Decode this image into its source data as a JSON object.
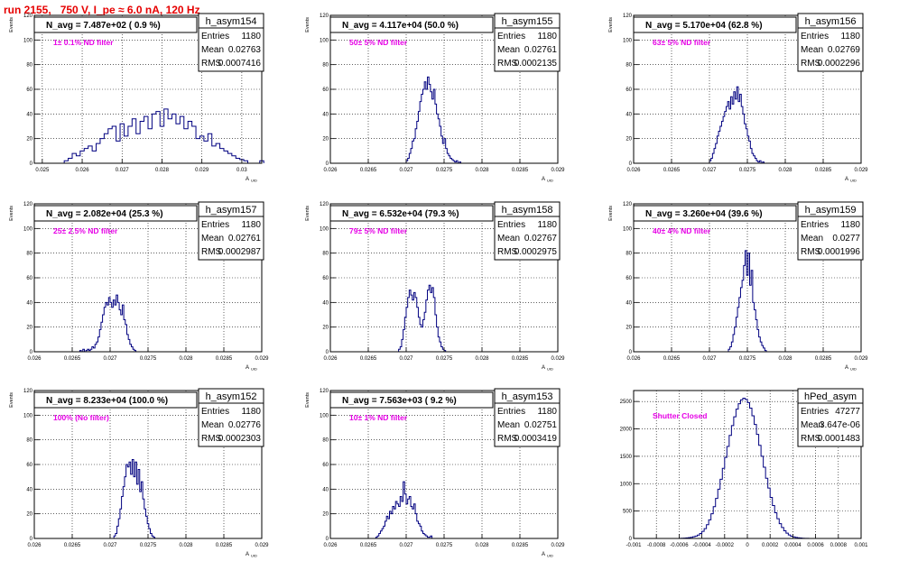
{
  "run_title": "run 2155,   750 V, I_pe ≈ 6.0 nA, 120 Hz",
  "colors": {
    "histogram": "#000080",
    "annotation": "#e600e6",
    "title": "#e60000",
    "grid": "#000000"
  },
  "stats_labels": {
    "entries": "Entries",
    "mean": "Mean",
    "rms": "RMS"
  },
  "chart_data": [
    {
      "type": "histogram",
      "name": "h_asym154",
      "nav": "N_avg = 7.487e+02 ( 0.9 %)",
      "annotation": "1± 0.1% ND filter",
      "entries": "1180",
      "mean": "0.02763",
      "rms": "0.0007416",
      "ylabel": "Events",
      "xlabel": "A_UID",
      "xlim": [
        0.0248,
        0.0305
      ],
      "ylim": [
        0,
        120
      ],
      "xticks": [
        0.025,
        0.026,
        0.027,
        0.028,
        0.029,
        0.03
      ],
      "xticklabels": [
        "0.025",
        "0.026",
        "0.027",
        "0.028",
        "0.029",
        "0.03"
      ],
      "yticks": [
        0,
        20,
        40,
        60,
        80,
        100,
        120
      ],
      "yticklabels": [
        "0",
        "20",
        "40",
        "60",
        "80",
        "100",
        "120"
      ],
      "bins": {
        "start": 0.02555,
        "width": 0.0001,
        "counts": [
          2,
          4,
          8,
          6,
          10,
          12,
          14,
          10,
          16,
          20,
          24,
          28,
          30,
          18,
          32,
          22,
          30,
          36,
          24,
          34,
          38,
          28,
          40,
          42,
          30,
          44,
          36,
          40,
          32,
          38,
          28,
          34,
          30,
          20,
          22,
          18,
          24,
          14,
          16,
          12,
          10,
          8,
          6,
          4,
          3,
          2,
          0,
          0,
          0,
          2
        ]
      }
    },
    {
      "type": "histogram",
      "name": "h_asym155",
      "nav": "N_avg = 4.117e+04 (50.0 %)",
      "annotation": "50± 5% ND filter",
      "entries": "1180",
      "mean": "0.02761",
      "rms": "0.0002135",
      "ylabel": "Events",
      "xlabel": "A_UID",
      "xlim": [
        0.026,
        0.029
      ],
      "ylim": [
        0,
        120
      ],
      "xticks": [
        0.026,
        0.0265,
        0.027,
        0.0275,
        0.028,
        0.0285,
        0.029
      ],
      "xticklabels": [
        "0.026",
        "0.0265",
        "0.027",
        "0.0275",
        "0.028",
        "0.0285",
        "0.029"
      ],
      "yticks": [
        0,
        20,
        40,
        60,
        80,
        100,
        120
      ],
      "yticklabels": [
        "0",
        "20",
        "40",
        "60",
        "80",
        "100",
        "120"
      ],
      "bins": {
        "start": 0.027,
        "width": 2e-05,
        "counts": [
          2,
          4,
          8,
          12,
          18,
          20,
          28,
          34,
          42,
          50,
          56,
          60,
          66,
          60,
          70,
          64,
          58,
          52,
          60,
          48,
          40,
          36,
          30,
          22,
          16,
          20,
          12,
          8,
          6,
          4,
          3,
          2,
          1,
          2,
          0,
          1
        ]
      }
    },
    {
      "type": "histogram",
      "name": "h_asym156",
      "nav": "N_avg = 5.170e+04 (62.8 %)",
      "annotation": "63± 5% ND filter",
      "entries": "1180",
      "mean": "0.02769",
      "rms": "0.0002296",
      "ylabel": "Events",
      "xlabel": "A_UID",
      "xlim": [
        0.026,
        0.029
      ],
      "ylim": [
        0,
        120
      ],
      "xticks": [
        0.026,
        0.0265,
        0.027,
        0.0275,
        0.028,
        0.0285,
        0.029
      ],
      "xticklabels": [
        "0.026",
        "0.0265",
        "0.027",
        "0.0275",
        "0.028",
        "0.0285",
        "0.029"
      ],
      "yticks": [
        0,
        20,
        40,
        60,
        80,
        100,
        120
      ],
      "yticklabels": [
        "0",
        "20",
        "40",
        "60",
        "80",
        "100",
        "120"
      ],
      "bins": {
        "start": 0.027,
        "width": 2e-05,
        "counts": [
          2,
          4,
          8,
          12,
          16,
          22,
          26,
          30,
          34,
          38,
          42,
          46,
          50,
          44,
          54,
          48,
          58,
          52,
          62,
          50,
          56,
          46,
          40,
          32,
          28,
          22,
          18,
          12,
          8,
          6,
          4,
          2,
          1,
          2,
          0,
          1
        ]
      }
    },
    {
      "type": "histogram",
      "name": "h_asym157",
      "nav": "N_avg = 2.082e+04 (25.3 %)",
      "annotation": "25± 2.5% ND filter",
      "entries": "1180",
      "mean": "0.02761",
      "rms": "0.0002987",
      "ylabel": "Events",
      "xlabel": "A_UID",
      "xlim": [
        0.026,
        0.029
      ],
      "ylim": [
        0,
        120
      ],
      "xticks": [
        0.026,
        0.0265,
        0.027,
        0.0275,
        0.028,
        0.0285,
        0.029
      ],
      "xticklabels": [
        "0.026",
        "0.0265",
        "0.027",
        "0.0275",
        "0.028",
        "0.0285",
        "0.029"
      ],
      "yticks": [
        0,
        20,
        40,
        60,
        80,
        100,
        120
      ],
      "yticklabels": [
        "0",
        "20",
        "40",
        "60",
        "80",
        "100",
        "120"
      ],
      "bins": {
        "start": 0.0266,
        "width": 2e-05,
        "counts": [
          1,
          0,
          2,
          0,
          1,
          2,
          1,
          2,
          4,
          3,
          6,
          8,
          12,
          18,
          24,
          30,
          36,
          40,
          38,
          44,
          40,
          36,
          42,
          38,
          46,
          40,
          34,
          30,
          38,
          26,
          22,
          14,
          10,
          6,
          4,
          2,
          1
        ]
      }
    },
    {
      "type": "histogram",
      "name": "h_asym158",
      "nav": "N_avg = 6.532e+04 (79.3 %)",
      "annotation": "79± 5% ND filter",
      "entries": "1180",
      "mean": "0.02767",
      "rms": "0.0002975",
      "ylabel": "Events",
      "xlabel": "A_UID",
      "xlim": [
        0.026,
        0.029
      ],
      "ylim": [
        0,
        120
      ],
      "xticks": [
        0.026,
        0.0265,
        0.027,
        0.0275,
        0.028,
        0.0285,
        0.029
      ],
      "xticklabels": [
        "0.026",
        "0.0265",
        "0.027",
        "0.0275",
        "0.028",
        "0.0285",
        "0.029"
      ],
      "yticks": [
        0,
        20,
        40,
        60,
        80,
        100,
        120
      ],
      "yticklabels": [
        "0",
        "20",
        "40",
        "60",
        "80",
        "100",
        "120"
      ],
      "bins": {
        "start": 0.0269,
        "width": 2e-05,
        "counts": [
          2,
          4,
          10,
          18,
          28,
          36,
          44,
          50,
          46,
          42,
          48,
          44,
          36,
          28,
          22,
          20,
          26,
          32,
          42,
          50,
          54,
          48,
          52,
          44,
          30,
          20,
          12,
          8,
          4,
          2,
          1
        ]
      }
    },
    {
      "type": "histogram",
      "name": "h_asym159",
      "nav": "N_avg = 3.260e+04 (39.6 %)",
      "annotation": "40± 4% ND filter",
      "entries": "1180",
      "mean": "0.0277",
      "rms": "0.0001996",
      "ylabel": "Events",
      "xlabel": "A_UID",
      "xlim": [
        0.026,
        0.029
      ],
      "ylim": [
        0,
        120
      ],
      "xticks": [
        0.026,
        0.0265,
        0.027,
        0.0275,
        0.028,
        0.0285,
        0.029
      ],
      "xticklabels": [
        "0.026",
        "0.0265",
        "0.027",
        "0.0275",
        "0.028",
        "0.0285",
        "0.029"
      ],
      "yticks": [
        0,
        20,
        40,
        60,
        80,
        100,
        120
      ],
      "yticklabels": [
        "0",
        "20",
        "40",
        "60",
        "80",
        "100",
        "120"
      ],
      "bins": {
        "start": 0.02725,
        "width": 2e-05,
        "counts": [
          2,
          4,
          8,
          14,
          20,
          28,
          36,
          44,
          52,
          58,
          70,
          82,
          62,
          80,
          54,
          66,
          40,
          34,
          26,
          18,
          12,
          8,
          5,
          3,
          1
        ]
      }
    },
    {
      "type": "histogram",
      "name": "h_asym152",
      "nav": "N_avg = 8.233e+04 (100.0 %)",
      "annotation": "100% (No filter)",
      "entries": "1180",
      "mean": "0.02776",
      "rms": "0.0002303",
      "ylabel": "Events",
      "xlabel": "A_UID",
      "xlim": [
        0.026,
        0.029
      ],
      "ylim": [
        0,
        120
      ],
      "xticks": [
        0.026,
        0.0265,
        0.027,
        0.0275,
        0.028,
        0.0285,
        0.029
      ],
      "xticklabels": [
        "0.026",
        "0.0265",
        "0.027",
        "0.0275",
        "0.028",
        "0.0285",
        "0.029"
      ],
      "yticks": [
        0,
        20,
        40,
        60,
        80,
        100,
        120
      ],
      "yticklabels": [
        "0",
        "20",
        "40",
        "60",
        "80",
        "100",
        "120"
      ],
      "bins": {
        "start": 0.02705,
        "width": 2e-05,
        "counts": [
          2,
          4,
          10,
          16,
          24,
          34,
          42,
          50,
          60,
          58,
          62,
          52,
          64,
          50,
          62,
          44,
          56,
          38,
          46,
          32,
          24,
          18,
          12,
          8,
          4,
          2,
          1
        ]
      }
    },
    {
      "type": "histogram",
      "name": "h_asym153",
      "nav": "N_avg = 7.563e+03 ( 9.2 %)",
      "annotation": "10± 1% ND filter",
      "entries": "1180",
      "mean": "0.02751",
      "rms": "0.0003419",
      "ylabel": "Events",
      "xlabel": "A_UID",
      "xlim": [
        0.026,
        0.029
      ],
      "ylim": [
        0,
        120
      ],
      "xticks": [
        0.026,
        0.0265,
        0.027,
        0.0275,
        0.028,
        0.0285,
        0.029
      ],
      "xticklabels": [
        "0.026",
        "0.0265",
        "0.027",
        "0.0275",
        "0.028",
        "0.0285",
        "0.029"
      ],
      "yticks": [
        0,
        20,
        40,
        60,
        80,
        100,
        120
      ],
      "yticklabels": [
        "0",
        "20",
        "40",
        "60",
        "80",
        "100",
        "120"
      ],
      "bins": {
        "start": 0.0266,
        "width": 2e-05,
        "counts": [
          1,
          2,
          4,
          6,
          8,
          10,
          14,
          18,
          16,
          22,
          20,
          26,
          24,
          30,
          28,
          26,
          34,
          30,
          46,
          36,
          28,
          32,
          34,
          26,
          24,
          28,
          20,
          14,
          12,
          10,
          6,
          4,
          3,
          2,
          1,
          1,
          2
        ]
      }
    },
    {
      "type": "histogram",
      "name": "hPed_asym",
      "nav": "",
      "annotation": "Shutter Closed",
      "entries": "47277",
      "mean": "3.647e-06",
      "rms": "0.0001483",
      "ylabel": "",
      "xlabel": "",
      "xlim": [
        -0.001,
        0.001
      ],
      "ylim": [
        0,
        2700
      ],
      "xticks": [
        -0.001,
        -0.0008,
        -0.0006,
        -0.0004,
        -0.0002,
        0,
        0.0002,
        0.0004,
        0.0006,
        0.0008,
        0.001
      ],
      "xticklabels": [
        "-0.001",
        "-0.0008",
        "-0.0006",
        "-0.0004",
        "-0.0002",
        "0",
        "0.0002",
        "0.0004",
        "0.0006",
        "0.0008",
        "0.001"
      ],
      "yticks": [
        0,
        500,
        1000,
        1500,
        2000,
        2500
      ],
      "yticklabels": [
        "0",
        "500",
        "1000",
        "1500",
        "2000",
        "2500"
      ],
      "bins": {
        "start": -0.0006,
        "width": 2e-05,
        "counts": [
          2,
          4,
          6,
          10,
          14,
          20,
          30,
          44,
          62,
          90,
          130,
          180,
          250,
          340,
          450,
          580,
          730,
          900,
          1080,
          1280,
          1480,
          1680,
          1880,
          2060,
          2220,
          2360,
          2460,
          2530,
          2560,
          2540,
          2480,
          2380,
          2240,
          2080,
          1900,
          1700,
          1500,
          1300,
          1100,
          920,
          750,
          600,
          470,
          360,
          270,
          200,
          140,
          96,
          64,
          42,
          28,
          18,
          12,
          8,
          5,
          3,
          2,
          1,
          1,
          0
        ]
      }
    }
  ]
}
